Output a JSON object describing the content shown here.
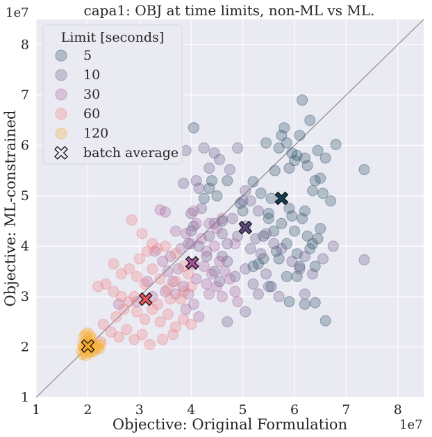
{
  "chart_data": {
    "type": "scatter",
    "title": "capa1: OBJ at time limits, non-ML vs ML.",
    "xlabel": "Objective: Original Formulation",
    "ylabel": "Objective: ML-constrained",
    "x_offset_label": "1e7",
    "y_offset_label": "1e7",
    "xlim": [
      1,
      8.5
    ],
    "ylim": [
      1,
      8.5
    ],
    "x_ticks": [
      1,
      2,
      3,
      4,
      5,
      6,
      7,
      8
    ],
    "y_ticks": [
      1,
      2,
      3,
      4,
      5,
      6,
      7,
      8
    ],
    "x_tick_labels": [
      "1",
      "2",
      "3",
      "4",
      "5",
      "6",
      "7",
      "8"
    ],
    "y_tick_labels": [
      "1",
      "2",
      "3",
      "4",
      "5",
      "6",
      "7",
      "8"
    ],
    "diagonal": true,
    "grid": true,
    "legend": {
      "title": "Limit [seconds]",
      "position": "top-left",
      "entries": [
        "5",
        "10",
        "30",
        "60",
        "120",
        "batch average"
      ]
    },
    "series": [
      {
        "name": "5",
        "color": "#2e5468",
        "points": [
          [
            4.05,
            6.35
          ],
          [
            4.7,
            5.3
          ],
          [
            4.35,
            5.15
          ],
          [
            4.25,
            4.95
          ],
          [
            5.2,
            5.28
          ],
          [
            5.35,
            5.05
          ],
          [
            5.45,
            6.05
          ],
          [
            5.5,
            4.55
          ],
          [
            5.55,
            4.95
          ],
          [
            5.62,
            5.5
          ],
          [
            5.7,
            5.95
          ],
          [
            5.75,
            6.2
          ],
          [
            5.8,
            6.35
          ],
          [
            5.85,
            6.05
          ],
          [
            5.9,
            5.55
          ],
          [
            5.95,
            5.85
          ],
          [
            6.0,
            5.7
          ],
          [
            6.05,
            5.8
          ],
          [
            6.1,
            6.2
          ],
          [
            6.15,
            6.9
          ],
          [
            6.2,
            5.75
          ],
          [
            6.25,
            5.6
          ],
          [
            6.3,
            6.5
          ],
          [
            6.35,
            5.1
          ],
          [
            6.4,
            5.3
          ],
          [
            6.45,
            5.9
          ],
          [
            6.5,
            5.35
          ],
          [
            6.55,
            5.05
          ],
          [
            6.6,
            5.75
          ],
          [
            6.7,
            4.9
          ],
          [
            6.8,
            6.02
          ],
          [
            7.35,
            5.52
          ],
          [
            5.4,
            4.2
          ],
          [
            5.5,
            4.65
          ],
          [
            5.6,
            4.3
          ],
          [
            5.65,
            3.9
          ],
          [
            5.7,
            3.75
          ],
          [
            5.75,
            4.45
          ],
          [
            5.85,
            4.05
          ],
          [
            5.9,
            4.75
          ],
          [
            5.95,
            4.6
          ],
          [
            6.0,
            4.3
          ],
          [
            6.05,
            3.85
          ],
          [
            6.1,
            3.6
          ],
          [
            6.15,
            4.55
          ],
          [
            6.2,
            4.7
          ],
          [
            6.25,
            4.2
          ],
          [
            6.3,
            3.95
          ],
          [
            6.35,
            4.05
          ],
          [
            6.4,
            3.6
          ],
          [
            6.45,
            4.15
          ],
          [
            6.5,
            4.35
          ],
          [
            5.3,
            3.65
          ],
          [
            5.4,
            3.75
          ],
          [
            5.55,
            3.2
          ],
          [
            5.9,
            2.9
          ],
          [
            6.2,
            2.85
          ],
          [
            6.4,
            2.88
          ],
          [
            6.6,
            2.52
          ],
          [
            5.85,
            3.4
          ],
          [
            6.05,
            3.4
          ],
          [
            5.2,
            3.6
          ],
          [
            4.95,
            4.85
          ],
          [
            5.0,
            4.7
          ],
          [
            4.6,
            4.5
          ],
          [
            4.4,
            5.3
          ],
          [
            4.5,
            5.0
          ]
        ]
      },
      {
        "name": "10",
        "color": "#6e5e8c",
        "points": [
          [
            3.9,
            5.9
          ],
          [
            4.25,
            5.95
          ],
          [
            4.45,
            5.85
          ],
          [
            4.55,
            5.72
          ],
          [
            4.75,
            5.52
          ],
          [
            4.9,
            5.95
          ],
          [
            5.05,
            5.1
          ],
          [
            5.15,
            4.9
          ],
          [
            5.3,
            4.7
          ],
          [
            4.15,
            5.15
          ],
          [
            4.35,
            5.55
          ],
          [
            4.1,
            5.3
          ],
          [
            3.85,
            5.25
          ],
          [
            4.0,
            4.65
          ],
          [
            4.2,
            4.75
          ],
          [
            4.45,
            4.45
          ],
          [
            4.6,
            4.25
          ],
          [
            4.7,
            4.05
          ],
          [
            4.8,
            4.55
          ],
          [
            5.0,
            4.9
          ],
          [
            5.05,
            4.4
          ],
          [
            5.15,
            3.95
          ],
          [
            5.25,
            4.15
          ],
          [
            5.35,
            3.85
          ],
          [
            5.45,
            4.25
          ],
          [
            5.6,
            4.05
          ],
          [
            5.75,
            3.95
          ],
          [
            5.95,
            3.7
          ],
          [
            6.1,
            3.55
          ],
          [
            6.2,
            3.8
          ],
          [
            6.35,
            3.45
          ],
          [
            6.55,
            3.75
          ],
          [
            6.75,
            4.0
          ],
          [
            7.35,
            3.73
          ],
          [
            4.0,
            4.3
          ],
          [
            4.15,
            4.0
          ],
          [
            4.3,
            3.8
          ],
          [
            4.45,
            3.5
          ],
          [
            4.55,
            3.3
          ],
          [
            4.7,
            3.7
          ],
          [
            4.85,
            3.4
          ],
          [
            5.05,
            3.55
          ],
          [
            5.2,
            3.25
          ],
          [
            5.3,
            3.05
          ],
          [
            5.5,
            3.2
          ],
          [
            5.45,
            3.45
          ],
          [
            4.7,
            2.5
          ],
          [
            5.05,
            2.7
          ],
          [
            5.7,
            3.0
          ],
          [
            6.2,
            3.05
          ],
          [
            4.6,
            3.8
          ],
          [
            4.35,
            4.2
          ],
          [
            4.05,
            4.4
          ],
          [
            3.95,
            4.05
          ],
          [
            4.9,
            4.2
          ]
        ]
      },
      {
        "name": "30",
        "color": "#a86a9e",
        "points": [
          [
            3.4,
            4.72
          ],
          [
            3.5,
            4.68
          ],
          [
            3.7,
            4.3
          ],
          [
            3.8,
            3.95
          ],
          [
            3.9,
            4.25
          ],
          [
            4.0,
            4.05
          ],
          [
            4.1,
            4.45
          ],
          [
            4.2,
            4.15
          ],
          [
            4.3,
            3.9
          ],
          [
            4.45,
            4.0
          ],
          [
            4.55,
            3.7
          ],
          [
            4.65,
            3.5
          ],
          [
            4.75,
            3.35
          ],
          [
            4.85,
            3.1
          ],
          [
            4.9,
            2.9
          ],
          [
            3.3,
            3.9
          ],
          [
            3.45,
            3.7
          ],
          [
            3.55,
            3.5
          ],
          [
            3.65,
            3.3
          ],
          [
            3.75,
            3.55
          ],
          [
            3.85,
            3.2
          ],
          [
            3.95,
            3.05
          ],
          [
            4.05,
            2.85
          ],
          [
            4.15,
            2.6
          ],
          [
            4.1,
            3.35
          ],
          [
            4.25,
            3.6
          ],
          [
            4.4,
            3.45
          ],
          [
            4.5,
            3.2
          ],
          [
            4.6,
            3.0
          ],
          [
            4.3,
            3.25
          ],
          [
            3.6,
            3.8
          ],
          [
            3.5,
            3.1
          ],
          [
            2.6,
            2.85
          ],
          [
            2.95,
            2.9
          ],
          [
            3.25,
            3.0
          ],
          [
            3.9,
            2.75
          ],
          [
            4.05,
            4.7
          ],
          [
            4.35,
            4.45
          ],
          [
            4.5,
            4.35
          ],
          [
            4.6,
            4.55
          ],
          [
            4.85,
            4.05
          ],
          [
            4.35,
            3.05
          ],
          [
            4.05,
            3.65
          ],
          [
            3.7,
            3.05
          ],
          [
            3.15,
            3.3
          ]
        ]
      },
      {
        "name": "60",
        "color": "#ee8385",
        "points": [
          [
            2.85,
            4.52
          ],
          [
            3.05,
            4.25
          ],
          [
            3.25,
            4.05
          ],
          [
            3.0,
            3.75
          ],
          [
            3.15,
            3.9
          ],
          [
            3.35,
            3.95
          ],
          [
            3.5,
            4.0
          ],
          [
            3.7,
            3.85
          ],
          [
            3.85,
            3.6
          ],
          [
            2.5,
            3.65
          ],
          [
            2.65,
            3.45
          ],
          [
            2.8,
            3.55
          ],
          [
            2.95,
            3.4
          ],
          [
            3.1,
            3.25
          ],
          [
            3.25,
            3.55
          ],
          [
            3.4,
            3.35
          ],
          [
            3.55,
            3.15
          ],
          [
            3.7,
            3.3
          ],
          [
            3.85,
            3.1
          ],
          [
            4.0,
            3.2
          ],
          [
            2.2,
            3.2
          ],
          [
            2.35,
            3.25
          ],
          [
            2.5,
            3.1
          ],
          [
            2.65,
            3.0
          ],
          [
            2.8,
            2.9
          ],
          [
            2.95,
            2.7
          ],
          [
            3.1,
            2.55
          ],
          [
            3.25,
            2.75
          ],
          [
            3.4,
            2.5
          ],
          [
            3.55,
            2.65
          ],
          [
            3.7,
            2.4
          ],
          [
            3.85,
            2.55
          ],
          [
            4.0,
            2.45
          ],
          [
            2.3,
            2.45
          ],
          [
            2.45,
            2.3
          ],
          [
            2.6,
            2.2
          ],
          [
            2.75,
            2.35
          ],
          [
            2.9,
            2.15
          ],
          [
            3.05,
            2.25
          ],
          [
            3.2,
            2.05
          ],
          [
            3.45,
            2.15
          ],
          [
            3.65,
            2.25
          ],
          [
            2.55,
            2.6
          ],
          [
            2.7,
            2.75
          ],
          [
            2.25,
            2.1
          ],
          [
            3.8,
            2.95
          ],
          [
            3.95,
            3.45
          ],
          [
            2.9,
            3.0
          ],
          [
            3.35,
            2.85
          ],
          [
            3.6,
            2.95
          ]
        ]
      },
      {
        "name": "120",
        "color": "#f9b13d",
        "points": [
          [
            1.88,
            1.92
          ],
          [
            1.9,
            2.05
          ],
          [
            1.92,
            2.0
          ],
          [
            1.94,
            1.95
          ],
          [
            1.95,
            2.1
          ],
          [
            1.96,
            1.88
          ],
          [
            1.98,
            2.02
          ],
          [
            2.0,
            1.96
          ],
          [
            2.0,
            2.15
          ],
          [
            2.02,
            2.06
          ],
          [
            2.04,
            1.9
          ],
          [
            2.05,
            2.0
          ],
          [
            2.06,
            2.12
          ],
          [
            2.08,
            1.98
          ],
          [
            2.1,
            2.05
          ],
          [
            2.12,
            1.94
          ],
          [
            2.15,
            2.02
          ],
          [
            2.18,
            1.98
          ],
          [
            2.2,
            2.04
          ],
          [
            1.92,
            2.2
          ],
          [
            1.95,
            2.25
          ],
          [
            2.0,
            2.28
          ],
          [
            2.05,
            2.22
          ],
          [
            1.9,
            1.85
          ],
          [
            1.97,
            1.83
          ],
          [
            2.1,
            1.9
          ],
          [
            2.22,
            1.96
          ],
          [
            2.25,
            2.05
          ],
          [
            1.93,
            1.98
          ],
          [
            2.03,
            1.93
          ],
          [
            1.99,
            2.08
          ],
          [
            2.07,
            2.18
          ]
        ]
      }
    ],
    "batch_average": [
      {
        "name": "5",
        "x": 5.75,
        "y": 4.95,
        "color": "#123f56"
      },
      {
        "name": "10",
        "x": 5.05,
        "y": 4.37,
        "color": "#5c4d80"
      },
      {
        "name": "30",
        "x": 4.02,
        "y": 3.67,
        "color": "#a55494"
      },
      {
        "name": "60",
        "x": 3.12,
        "y": 2.95,
        "color": "#e6565a"
      },
      {
        "name": "120",
        "x": 2.0,
        "y": 2.02,
        "color": "#f7a62b"
      }
    ],
    "legend_marker_color": "#e8e8ee"
  }
}
